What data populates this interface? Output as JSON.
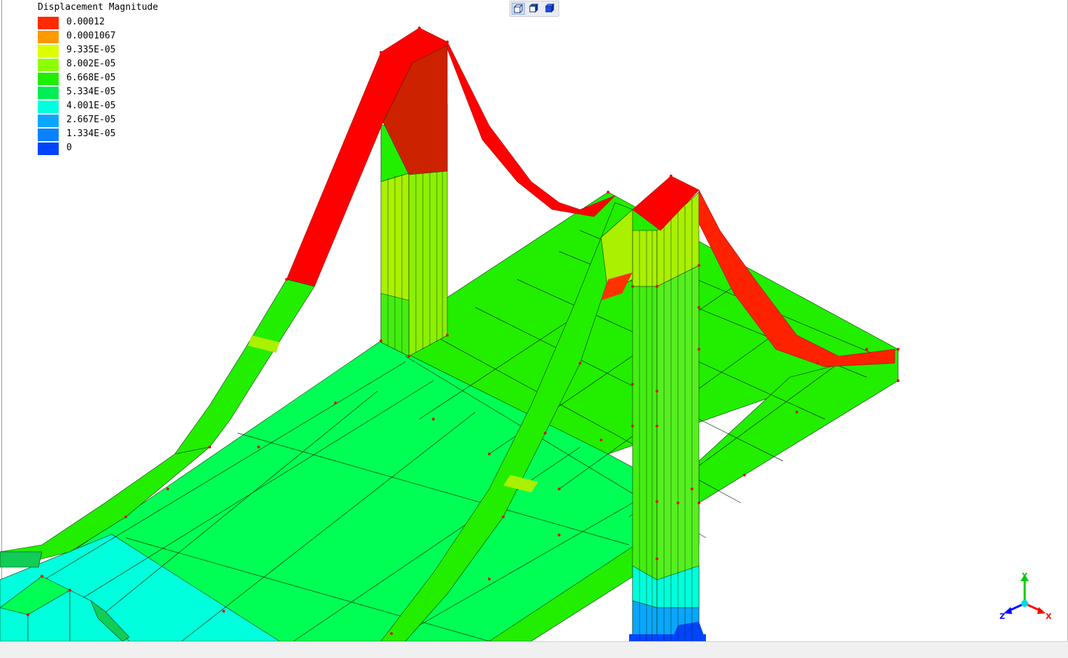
{
  "legend": {
    "title": "Displacement Magnitude",
    "entries": [
      {
        "label": "0.00012",
        "color": "#ff2a00"
      },
      {
        "label": "0.0001067",
        "color": "#ff9900"
      },
      {
        "label": "9.335E-05",
        "color": "#dcff00"
      },
      {
        "label": "8.002E-05",
        "color": "#8cff00"
      },
      {
        "label": "6.668E-05",
        "color": "#22ee00"
      },
      {
        "label": "5.334E-05",
        "color": "#00ee55"
      },
      {
        "label": "4.001E-05",
        "color": "#00ffdd"
      },
      {
        "label": "2.667E-05",
        "color": "#0aa6ff"
      },
      {
        "label": "1.334E-05",
        "color": "#0a82ff"
      },
      {
        "label": "0",
        "color": "#0044ff"
      }
    ]
  },
  "toolbar": {
    "buttons": [
      {
        "icon": "wireframe-cube-icon",
        "active": true
      },
      {
        "icon": "shaded-edges-cube-icon",
        "active": false
      },
      {
        "icon": "solid-cube-icon",
        "active": false
      }
    ]
  },
  "axis_triad": {
    "x_label": "X",
    "y_label": "Y",
    "z_label": "Z"
  },
  "colors": {
    "red": "#ff0000",
    "yellow_green": "#aaf000",
    "green": "#22ee00",
    "green_cyan": "#00ff55",
    "cyan": "#00ffdd",
    "blue": "#0aa6ff",
    "node": "#dd1111"
  }
}
